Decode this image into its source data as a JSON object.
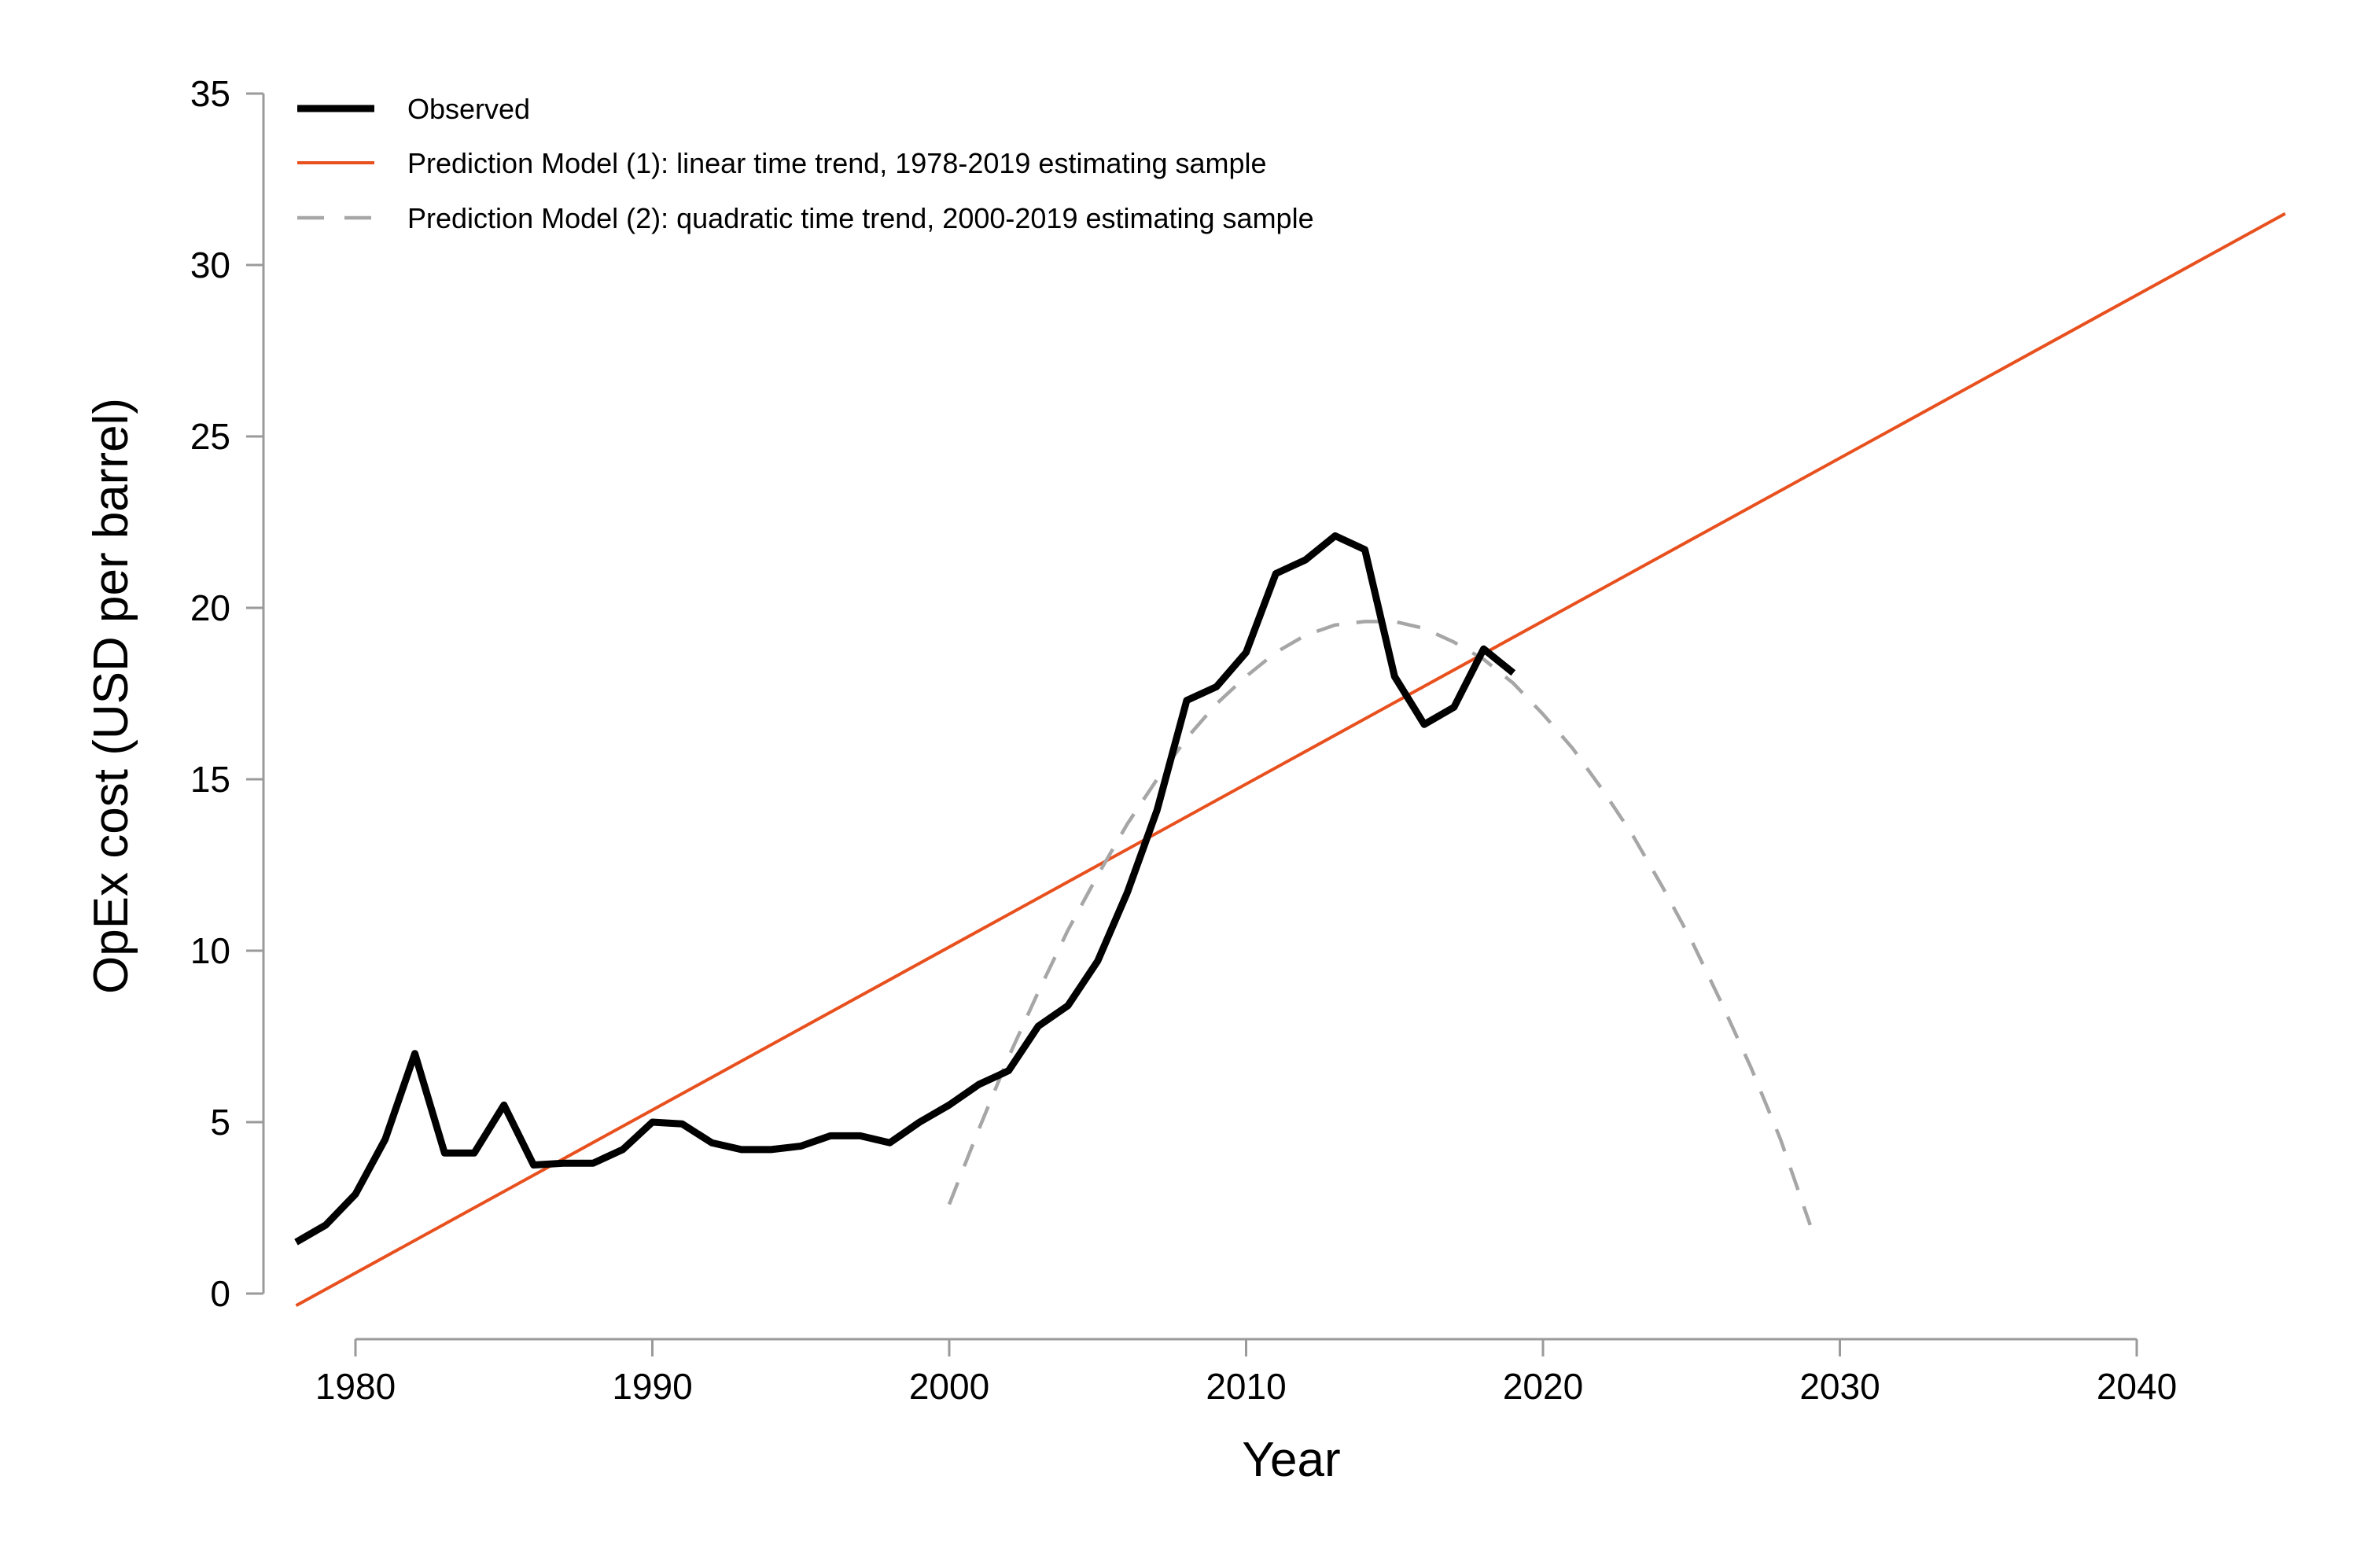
{
  "chart_data": {
    "type": "line",
    "title": "",
    "xlabel": "Year",
    "ylabel": "OpEx cost (USD per barrel)",
    "xlim": [
      1978,
      2045
    ],
    "ylim": [
      0,
      35
    ],
    "x_ticks": [
      1980,
      1990,
      2000,
      2010,
      2020,
      2030,
      2040
    ],
    "y_ticks": [
      0,
      5,
      10,
      15,
      20,
      25,
      30,
      35
    ],
    "grid": false,
    "legend": {
      "position": "top-left"
    },
    "series": [
      {
        "name": "Observed",
        "color": "#000000",
        "style": "solid",
        "x": [
          1978,
          1979,
          1980,
          1981,
          1982,
          1983,
          1984,
          1985,
          1986,
          1987,
          1988,
          1989,
          1990,
          1991,
          1992,
          1993,
          1994,
          1995,
          1996,
          1997,
          1998,
          1999,
          2000,
          2001,
          2002,
          2003,
          2004,
          2005,
          2006,
          2007,
          2008,
          2009,
          2010,
          2011,
          2012,
          2013,
          2014,
          2015,
          2016,
          2017,
          2018,
          2019
        ],
        "y": [
          1.5,
          2.0,
          2.9,
          4.5,
          7.0,
          4.1,
          4.1,
          5.5,
          3.75,
          3.8,
          3.8,
          4.2,
          5.0,
          4.95,
          4.4,
          4.2,
          4.2,
          4.3,
          4.6,
          4.6,
          4.4,
          5.0,
          5.5,
          6.1,
          6.5,
          7.8,
          8.4,
          9.7,
          11.7,
          14.1,
          17.3,
          17.7,
          18.7,
          21.0,
          21.4,
          22.1,
          21.7,
          18.0,
          16.6,
          17.1,
          18.8,
          18.1
        ]
      },
      {
        "name": "Prediction Model (1): linear time trend, 1978-2019 estimating sample",
        "color": "#e8501e",
        "style": "solid",
        "x": [
          1978,
          2045
        ],
        "y": [
          -0.35,
          31.5
        ]
      },
      {
        "name": "Prediction Model (2): quadratic time trend, 2000-2019 estimating sample",
        "color": "#a6a6a6",
        "style": "dashed",
        "x": [
          2000,
          2001,
          2002,
          2003,
          2004,
          2005,
          2006,
          2007,
          2008,
          2009,
          2010,
          2011,
          2012,
          2013,
          2014,
          2015,
          2016,
          2017,
          2018,
          2019,
          2020,
          2021,
          2022,
          2023,
          2024,
          2025,
          2026,
          2027,
          2028,
          2029
        ],
        "y": [
          2.6,
          4.8,
          6.9,
          8.8,
          10.6,
          12.2,
          13.7,
          15.0,
          16.2,
          17.2,
          18.0,
          18.7,
          19.2,
          19.5,
          19.6,
          19.6,
          19.4,
          19.0,
          18.5,
          17.8,
          16.9,
          15.9,
          14.7,
          13.4,
          11.9,
          10.3,
          8.5,
          6.6,
          4.5,
          2.0
        ]
      }
    ]
  }
}
